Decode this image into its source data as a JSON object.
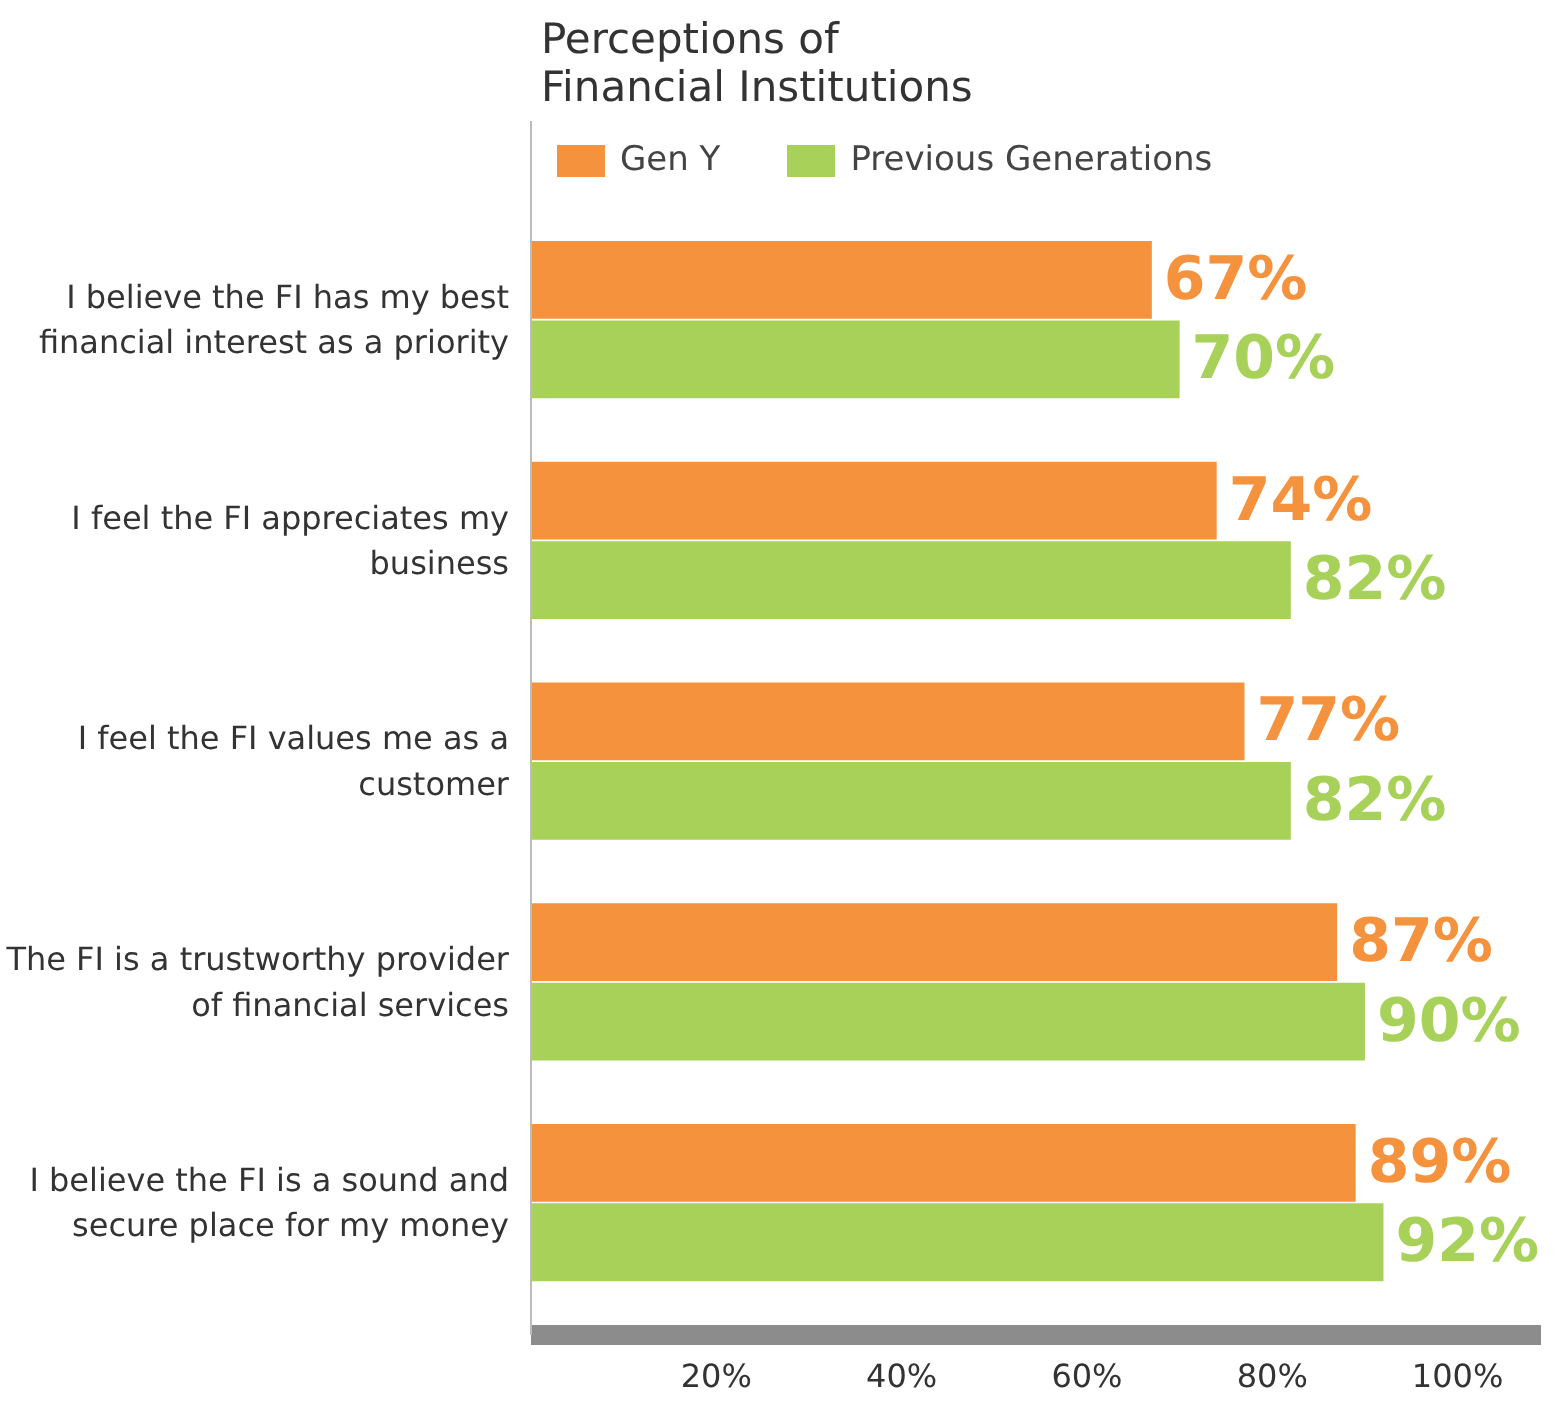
{
  "chart_data": {
    "type": "bar",
    "orientation": "horizontal",
    "title": "Perceptions of Financial Institutions",
    "categories": [
      "I believe the FI has my best financial interest as a priority",
      "I feel the FI appreciates my business",
      "I feel the FI values me as a customer",
      "The FI is a trustworthy provider of financial services",
      "I believe the FI is a sound and secure place for my money"
    ],
    "series": [
      {
        "name": "Gen Y",
        "color": "#f5923e",
        "values": [
          67,
          74,
          77,
          87,
          89
        ],
        "value_labels": [
          "67%",
          "74%",
          "77%",
          "87%",
          "89%"
        ]
      },
      {
        "name": "Previous Generations",
        "color": "#a8d15a",
        "values": [
          70,
          82,
          82,
          90,
          92
        ],
        "value_labels": [
          "70%",
          "82%",
          "82%",
          "90%",
          "92%"
        ]
      }
    ],
    "xlim": [
      0,
      109
    ],
    "xticks": [
      {
        "value": 20,
        "label": "20%"
      },
      {
        "value": 40,
        "label": "40%"
      },
      {
        "value": 60,
        "label": "60%"
      },
      {
        "value": 80,
        "label": "80%"
      },
      {
        "value": 100,
        "label": "100%"
      }
    ],
    "legend": "top",
    "grid": false
  }
}
